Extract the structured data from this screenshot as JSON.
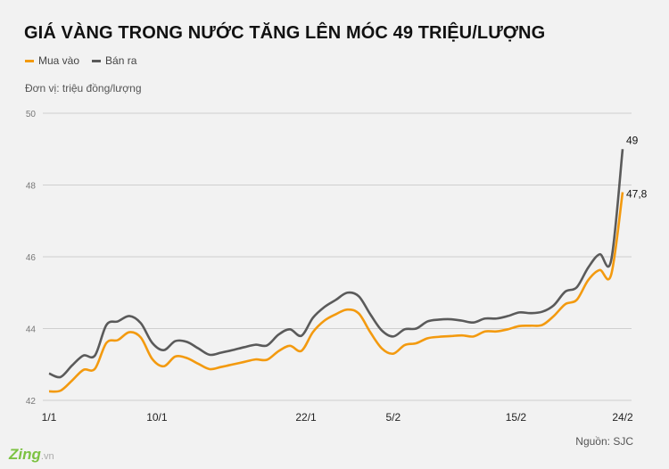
{
  "title": "GIÁ VÀNG TRONG NƯỚC TĂNG LÊN MÓC 49 TRIỆU/LƯỢNG",
  "unit_label": "Đơn vị: triệu đồng/lượng",
  "source": "Nguồn: SJC",
  "logo": {
    "text": "Zing",
    "suffix": ".vn"
  },
  "chart_data": {
    "type": "line",
    "ylim": [
      42,
      50
    ],
    "yticks": [
      42,
      44,
      46,
      48,
      50
    ],
    "grid": true,
    "legend": "top-left",
    "xticks": [
      {
        "label": "1/1",
        "index": 0
      },
      {
        "label": "10/1",
        "index": 9.4
      },
      {
        "label": "22/1",
        "index": 22.4
      },
      {
        "label": "5/2",
        "index": 30
      },
      {
        "label": "15/2",
        "index": 40.7
      },
      {
        "label": "24/2",
        "index": 50
      }
    ],
    "series": [
      {
        "name": "Mua vào",
        "color": "#f39a0f",
        "end_label": "47,8",
        "values": [
          42.25,
          42.27,
          42.55,
          42.85,
          42.88,
          43.6,
          43.68,
          43.9,
          43.75,
          43.15,
          42.95,
          43.22,
          43.18,
          43.02,
          42.87,
          42.93,
          43.0,
          43.07,
          43.14,
          43.13,
          43.37,
          43.52,
          43.38,
          43.9,
          44.22,
          44.4,
          44.53,
          44.42,
          43.9,
          43.45,
          43.3,
          43.54,
          43.59,
          43.73,
          43.77,
          43.79,
          43.81,
          43.78,
          43.92,
          43.92,
          43.98,
          44.07,
          44.08,
          44.1,
          44.35,
          44.68,
          44.8,
          45.35,
          45.63,
          45.5,
          47.8
        ]
      },
      {
        "name": "Bán ra",
        "color": "#5a5a5a",
        "end_label": "49",
        "values": [
          42.75,
          42.65,
          42.97,
          43.25,
          43.25,
          44.1,
          44.2,
          44.35,
          44.15,
          43.6,
          43.4,
          43.65,
          43.63,
          43.45,
          43.27,
          43.33,
          43.4,
          43.48,
          43.55,
          43.53,
          43.83,
          43.98,
          43.8,
          44.3,
          44.6,
          44.8,
          45.0,
          44.9,
          44.4,
          43.95,
          43.78,
          43.98,
          44.0,
          44.2,
          44.25,
          44.26,
          44.22,
          44.17,
          44.28,
          44.28,
          44.35,
          44.45,
          44.43,
          44.47,
          44.65,
          45.03,
          45.15,
          45.7,
          46.07,
          45.9,
          49.0
        ]
      }
    ]
  }
}
